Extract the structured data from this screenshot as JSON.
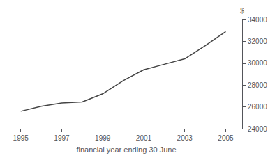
{
  "chart_data": {
    "type": "line",
    "x": [
      1995,
      1996,
      1997,
      1998,
      1999,
      2000,
      2001,
      2002,
      2003,
      2004,
      2005
    ],
    "values": [
      25600,
      26050,
      26350,
      26450,
      27200,
      28400,
      29400,
      29900,
      30400,
      31600,
      32900
    ],
    "xlabel": "financial year ending 30 June",
    "ylabel": "$",
    "color": "#444444",
    "xlim": [
      1994.5,
      2005.8
    ],
    "xticks": [
      1995,
      1997,
      1999,
      2001,
      2003,
      2005
    ],
    "ylim": [
      24000,
      34000
    ],
    "yticks": [
      24000,
      26000,
      28000,
      30000,
      32000,
      34000
    ],
    "grid": false
  }
}
